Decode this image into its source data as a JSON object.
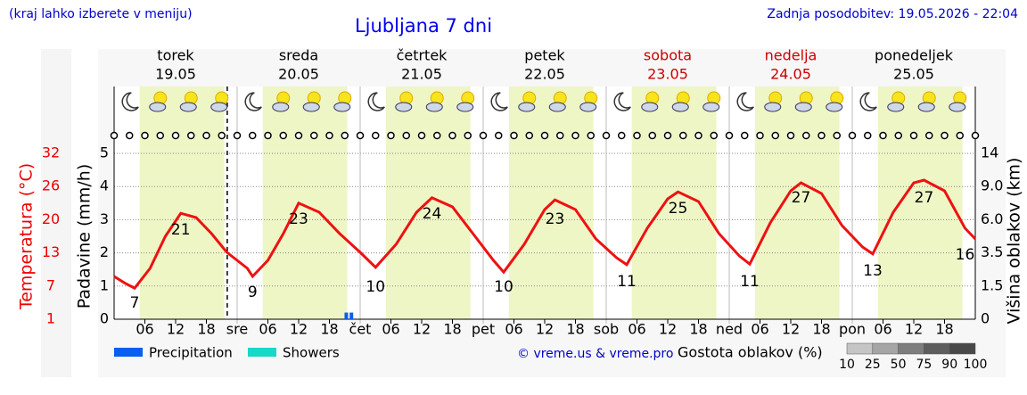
{
  "chart_data": {
    "type": "line",
    "title": "Ljubljana 7 dni",
    "note": "(kraj lahko izberete v meniju)",
    "updated": "Zadnja posodobitev: 19.05.2026 - 22:04",
    "credit": "© vreme.us & vreme.pro",
    "days": [
      {
        "name": "torek",
        "date": "19.05",
        "color": "#000000"
      },
      {
        "name": "sreda",
        "date": "20.05",
        "color": "#000000"
      },
      {
        "name": "četrtek",
        "date": "21.05",
        "color": "#000000"
      },
      {
        "name": "petek",
        "date": "22.05",
        "color": "#000000"
      },
      {
        "name": "sobota",
        "date": "23.05",
        "color": "#cc0000"
      },
      {
        "name": "nedelja",
        "date": "24.05",
        "color": "#cc0000"
      },
      {
        "name": "ponedeljek",
        "date": "25.05",
        "color": "#000000"
      }
    ],
    "xlim": [
      0,
      168
    ],
    "xticks": [
      {
        "value": 6,
        "label": "06"
      },
      12,
      18,
      {
        "value": 24,
        "label": "sre"
      },
      {
        "value": 30,
        "label": "06"
      },
      {
        "value": 36,
        "label": "12"
      },
      {
        "value": 42,
        "label": "18"
      },
      {
        "value": 48,
        "label": "čet"
      },
      {
        "value": 54,
        "label": "06"
      },
      {
        "value": 60,
        "label": "12"
      },
      {
        "value": 66,
        "label": "18"
      },
      {
        "value": 72,
        "label": "pet"
      },
      {
        "value": 78,
        "label": "06"
      },
      {
        "value": 84,
        "label": "12"
      },
      {
        "value": 90,
        "label": "18"
      },
      {
        "value": 96,
        "label": "sob"
      },
      {
        "value": 102,
        "label": "06"
      },
      {
        "value": 108,
        "label": "12"
      },
      {
        "value": 114,
        "label": "18"
      },
      {
        "value": 120,
        "label": "ned"
      },
      {
        "value": 126,
        "label": "06"
      },
      {
        "value": 132,
        "label": "12"
      },
      {
        "value": 138,
        "label": "18"
      },
      {
        "value": 144,
        "label": "pon"
      },
      {
        "value": 150,
        "label": "06"
      },
      {
        "value": 156,
        "label": "12"
      },
      {
        "value": 162,
        "label": "18"
      }
    ],
    "ylabel": "Padavine (mm/h)",
    "ylim": [
      0,
      5
    ],
    "yticks": [
      0,
      1,
      2,
      3,
      4,
      5
    ],
    "y2label": "Temperatura (°C)",
    "y2lim": [
      1,
      32
    ],
    "y2ticks": [
      1,
      {
        "value": 7.2,
        "label": "7"
      },
      {
        "value": 13.4,
        "label": "13"
      },
      {
        "value": 19.6,
        "label": "20"
      },
      {
        "value": 25.8,
        "label": "26"
      },
      32
    ],
    "y3label": "Višina oblakov (km)",
    "y3ticks": [
      0,
      1.5,
      3.5,
      {
        "value": 6,
        "label": "6.0"
      },
      {
        "value": 9,
        "label": "9.0"
      },
      14
    ],
    "grid": true,
    "now": 22.07,
    "daylight": {
      "from": 5,
      "to": 21.5,
      "color": "#eef6c6"
    },
    "temperature": {
      "color": "#ee1111",
      "axis": "y2",
      "x": [
        0,
        2,
        4,
        7,
        10,
        13,
        16,
        19,
        22,
        26,
        27,
        30,
        33,
        36,
        40,
        44,
        48,
        51,
        55,
        59,
        62,
        66,
        70,
        74,
        76,
        80,
        84,
        86,
        90,
        94,
        98,
        100,
        104,
        108,
        110,
        114,
        118,
        122,
        124,
        128,
        132,
        134,
        138,
        142,
        146,
        148,
        152,
        156,
        158,
        162,
        166,
        168
      ],
      "values": [
        9,
        7.8,
        6.8,
        10.5,
        16.5,
        20.8,
        20,
        17,
        13.5,
        10.5,
        9,
        12,
        17,
        22.7,
        21,
        17,
        13.5,
        10.7,
        15,
        21,
        23.7,
        22,
        17,
        12,
        9.8,
        15,
        21.5,
        23.3,
        21.5,
        16,
        12.5,
        11.2,
        18,
        23.5,
        24.8,
        23,
        17,
        12.8,
        11.3,
        19,
        25,
        26.5,
        24.5,
        18.5,
        14.5,
        13.2,
        21,
        26.5,
        27,
        25,
        18,
        16
      ]
    },
    "temp_labels": {
      "x": [
        4,
        13,
        27,
        36,
        51,
        62,
        76,
        86,
        100,
        110,
        124,
        134,
        148,
        158,
        166
      ],
      "values": [
        7,
        21,
        9,
        23,
        10,
        24,
        10,
        23,
        11,
        25,
        11,
        27,
        13,
        27,
        16
      ]
    },
    "precipitation": {
      "color": "#0a5ef0",
      "x": [
        45.3,
        46.3
      ],
      "values": [
        0.2,
        0.2
      ]
    },
    "legend": [
      {
        "name": "Precipitation",
        "color": "#0a5ef0"
      },
      {
        "name": "Showers",
        "color": "#18d8c8"
      }
    ],
    "colorbar": {
      "title": "Gostota oblakov (%)",
      "ticks": [
        10,
        25,
        50,
        75,
        90,
        100
      ]
    }
  }
}
